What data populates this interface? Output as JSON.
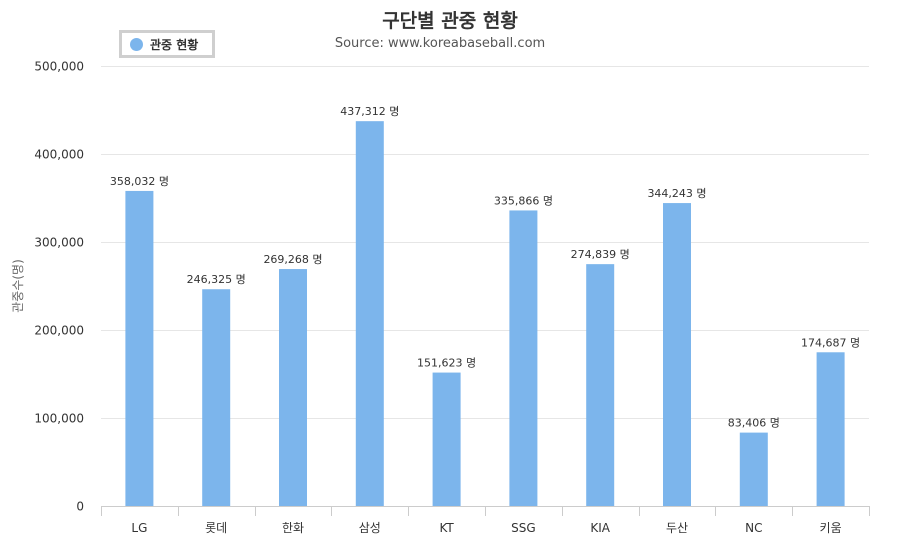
{
  "chart_data": {
    "type": "bar",
    "title": "구단별 관중 현황",
    "subtitle": "Source: www.koreabaseball.com",
    "xlabel": "",
    "ylabel": "관중수(명)",
    "ylim": [
      0,
      500000
    ],
    "yticks": [
      0,
      100000,
      200000,
      300000,
      400000,
      500000
    ],
    "ytick_labels": [
      "0",
      "100,000",
      "200,000",
      "300,000",
      "400,000",
      "500,000"
    ],
    "grid": true,
    "legend_position": "top-left",
    "value_suffix": " 명",
    "categories": [
      "LG",
      "롯데",
      "한화",
      "삼성",
      "KT",
      "SSG",
      "KIA",
      "두산",
      "NC",
      "키움"
    ],
    "series": [
      {
        "name": "관중 현황",
        "color": "#7cb5ec",
        "values": [
          358032,
          246325,
          269268,
          437312,
          151623,
          335866,
          274839,
          344243,
          83406,
          174687
        ],
        "labels": [
          "358,032 명",
          "246,325 명",
          "269,268 명",
          "437,312 명",
          "151,623 명",
          "335,866 명",
          "274,839 명",
          "344,243 명",
          "83,406 명",
          "174,687 명"
        ]
      }
    ]
  }
}
